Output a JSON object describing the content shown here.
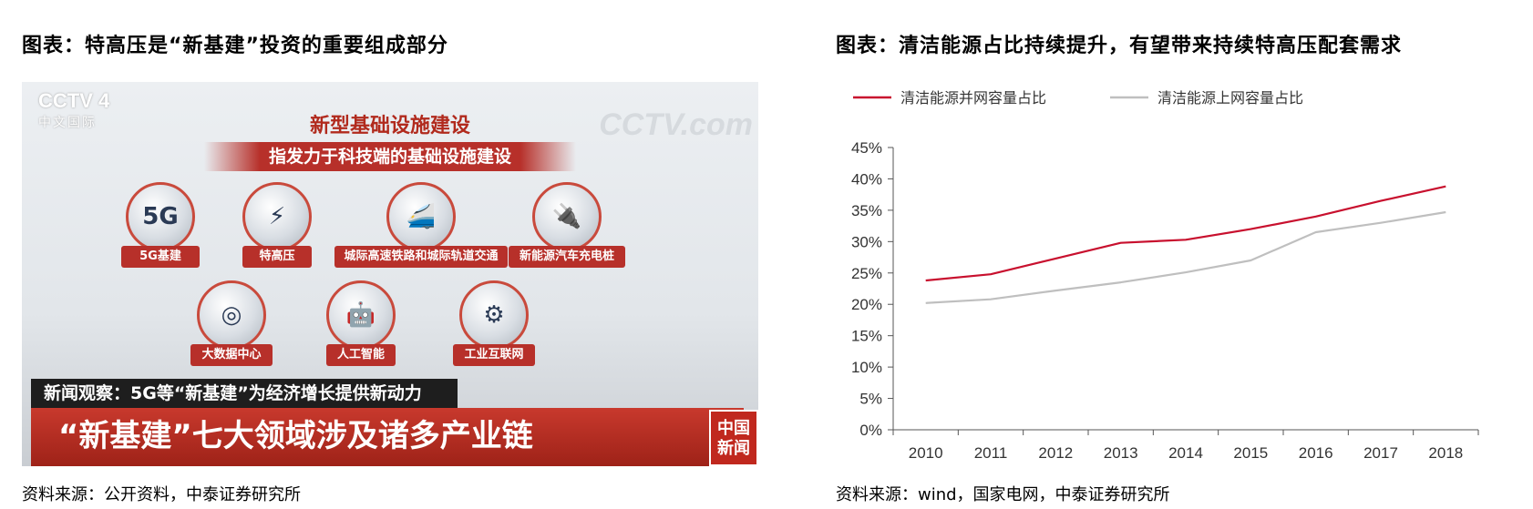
{
  "left_panel": {
    "title": "图表：特高压是“新基建”投资的重要组成部分",
    "source": "资料来源：公开资料，中泰证券研究所",
    "tv": {
      "channel_logo": "CCTV 4",
      "channel_sub": "中文国际",
      "watermark_logo": "CCTV.com",
      "headline": "新型基础设施建设",
      "banner": "指发力于科技端的基础设施建设",
      "nodes": [
        {
          "label": "5G基建",
          "glyph": "5G"
        },
        {
          "label": "特高压",
          "glyph": "⚡"
        },
        {
          "label": "城际高速铁路和城际轨道交通",
          "glyph": "🚄"
        },
        {
          "label": "新能源汽车充电桩",
          "glyph": "🔌"
        },
        {
          "label": "大数据中心",
          "glyph": "◎"
        },
        {
          "label": "人工智能",
          "glyph": "🤖"
        },
        {
          "label": "工业互联网",
          "glyph": "⚙"
        }
      ],
      "ticker": "新闻观察：5G等“新基建”为经济增长提供新动力",
      "lower_bar": "“新基建”七大领域涉及诸多产业链",
      "corner_logo_top": "中国",
      "corner_logo_bottom": "新闻"
    }
  },
  "right_panel": {
    "title": "图表：清洁能源占比持续提升，有望带来持续特高压配套需求",
    "source": "资料来源：wind，国家电网，中泰证券研究所"
  },
  "chart_data": {
    "type": "line",
    "x": [
      "2010",
      "2011",
      "2012",
      "2013",
      "2014",
      "2015",
      "2016",
      "2017",
      "2018"
    ],
    "ylim": [
      0,
      45
    ],
    "yticks": [
      "0%",
      "5%",
      "10%",
      "15%",
      "20%",
      "25%",
      "30%",
      "35%",
      "40%",
      "45%"
    ],
    "ytick_values": [
      0,
      5,
      10,
      15,
      20,
      25,
      30,
      35,
      40,
      45
    ],
    "legend_position": "top",
    "grid": false,
    "series": [
      {
        "name": "清洁能源并网容量占比",
        "color": "#c8102e",
        "values": [
          23.8,
          24.8,
          27.3,
          29.8,
          30.3,
          32.0,
          34.0,
          36.5,
          38.8
        ]
      },
      {
        "name": "清洁能源上网容量占比",
        "color": "#bfbfbf",
        "values": [
          20.2,
          20.8,
          22.2,
          23.5,
          25.1,
          27.0,
          31.5,
          33.0,
          34.7
        ]
      }
    ]
  }
}
